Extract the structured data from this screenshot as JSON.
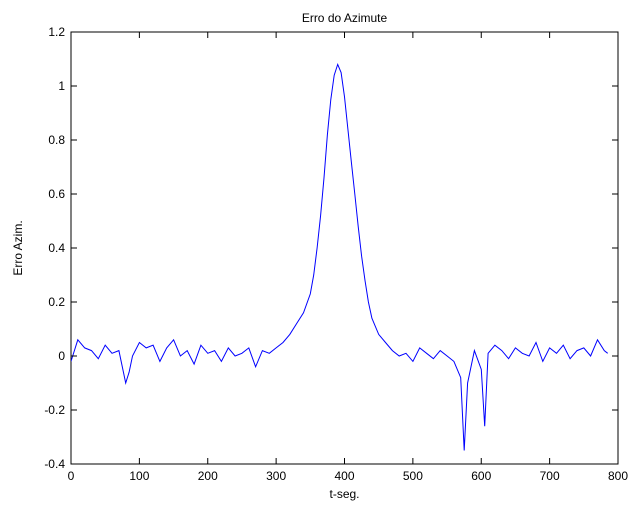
{
  "colors": {
    "background": "#ffffff",
    "axes": "#000000",
    "series": "#0000ff"
  },
  "chart_data": {
    "type": "line",
    "title": "Erro do Azimute",
    "xlabel": "t-seg.",
    "ylabel": "Erro Azim.",
    "xlim": [
      0,
      800
    ],
    "ylim": [
      -0.4,
      1.2
    ],
    "xticks": [
      0,
      100,
      200,
      300,
      400,
      500,
      600,
      700,
      800
    ],
    "xtick_labels": [
      "0",
      "100",
      "200",
      "300",
      "400",
      "500",
      "600",
      "700",
      "800"
    ],
    "yticks": [
      -0.4,
      -0.2,
      0,
      0.2,
      0.4,
      0.6,
      0.8,
      1,
      1.2
    ],
    "ytick_labels": [
      "-0.4",
      "-0.2",
      "0",
      "0.2",
      "0.4",
      "0.6",
      "0.8",
      "1",
      "1.2"
    ],
    "grid": false,
    "box": true,
    "series": [
      {
        "color": "#0000ff",
        "x": [
          0,
          10,
          20,
          30,
          40,
          50,
          60,
          70,
          80,
          85,
          90,
          100,
          110,
          120,
          130,
          140,
          150,
          160,
          170,
          180,
          190,
          200,
          210,
          220,
          230,
          240,
          250,
          260,
          270,
          280,
          290,
          300,
          310,
          320,
          330,
          340,
          350,
          355,
          360,
          365,
          370,
          375,
          380,
          385,
          390,
          395,
          400,
          405,
          410,
          415,
          420,
          425,
          430,
          435,
          440,
          450,
          460,
          470,
          480,
          490,
          500,
          510,
          520,
          530,
          540,
          550,
          560,
          570,
          575,
          580,
          590,
          600,
          605,
          610,
          620,
          630,
          640,
          650,
          660,
          670,
          680,
          690,
          700,
          710,
          720,
          730,
          740,
          750,
          760,
          770,
          780,
          785
        ],
        "y": [
          -0.02,
          0.06,
          0.03,
          0.02,
          -0.01,
          0.04,
          0.01,
          0.02,
          -0.1,
          -0.06,
          0.0,
          0.05,
          0.03,
          0.04,
          -0.02,
          0.03,
          0.06,
          0.0,
          0.02,
          -0.03,
          0.04,
          0.01,
          0.02,
          -0.02,
          0.03,
          0.0,
          0.01,
          0.03,
          -0.04,
          0.02,
          0.01,
          0.03,
          0.05,
          0.08,
          0.12,
          0.16,
          0.23,
          0.3,
          0.4,
          0.52,
          0.66,
          0.82,
          0.95,
          1.04,
          1.08,
          1.05,
          0.96,
          0.84,
          0.72,
          0.6,
          0.48,
          0.37,
          0.28,
          0.2,
          0.14,
          0.08,
          0.05,
          0.02,
          0.0,
          0.01,
          -0.02,
          0.03,
          0.01,
          -0.01,
          0.02,
          0.0,
          -0.02,
          -0.08,
          -0.35,
          -0.1,
          0.02,
          -0.05,
          -0.26,
          0.01,
          0.04,
          0.02,
          -0.01,
          0.03,
          0.01,
          0.0,
          0.05,
          -0.02,
          0.03,
          0.01,
          0.04,
          -0.01,
          0.02,
          0.03,
          0.0,
          0.06,
          0.02,
          0.01
        ]
      }
    ]
  }
}
